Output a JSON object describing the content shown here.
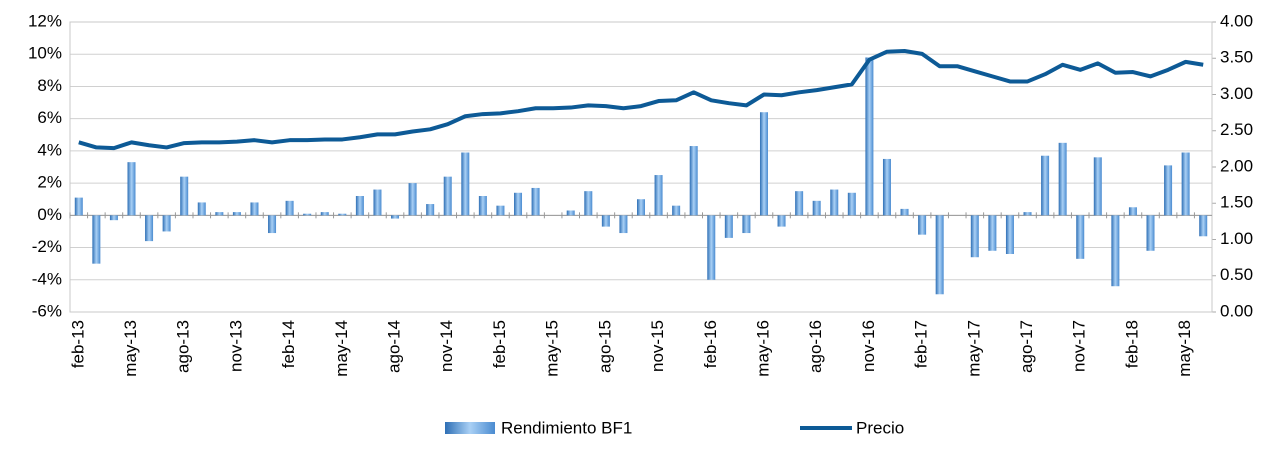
{
  "chart_data": {
    "type": "bar",
    "categories": [
      "feb-13",
      null,
      null,
      "may-13",
      null,
      null,
      "ago-13",
      null,
      null,
      "nov-13",
      null,
      null,
      "feb-14",
      null,
      null,
      "may-14",
      null,
      null,
      "ago-14",
      null,
      null,
      "nov-14",
      null,
      null,
      "feb-15",
      null,
      null,
      "may-15",
      null,
      null,
      "ago-15",
      null,
      null,
      "nov-15",
      null,
      null,
      "feb-16",
      null,
      null,
      "may-16",
      null,
      null,
      "ago-16",
      null,
      null,
      "nov-16",
      null,
      null,
      "feb-17",
      null,
      null,
      "may-17",
      null,
      null,
      "ago-17",
      null,
      null,
      "nov-17",
      null,
      null,
      "feb-18",
      null,
      null,
      "may-18",
      null
    ],
    "series": [
      {
        "name": "Rendimiento BF1",
        "type": "bar",
        "color": "#5b9bd5",
        "values": [
          1.1,
          -3.0,
          -0.3,
          3.3,
          -1.6,
          -1.0,
          2.4,
          0.8,
          0.2,
          0.2,
          0.8,
          -1.1,
          0.9,
          0.1,
          0.2,
          0.1,
          1.2,
          1.6,
          -0.2,
          2.0,
          0.7,
          2.4,
          3.9,
          1.2,
          0.6,
          1.4,
          1.7,
          0.0,
          0.3,
          1.5,
          -0.7,
          -1.1,
          1.0,
          2.5,
          0.6,
          4.3,
          -4.0,
          -1.4,
          -1.1,
          6.4,
          -0.7,
          1.5,
          0.9,
          1.6,
          1.4,
          9.8,
          3.5,
          0.4,
          -1.2,
          -4.9,
          0.0,
          -2.6,
          -2.2,
          -2.4,
          0.2,
          3.7,
          4.5,
          -2.7,
          3.6,
          -4.4,
          0.5,
          -2.2,
          3.1,
          3.9,
          -1.3
        ]
      },
      {
        "name": "Precio",
        "type": "line",
        "axis": "y2",
        "color": "#0d5a96",
        "values": [
          2.34,
          2.27,
          2.26,
          2.34,
          2.3,
          2.27,
          2.33,
          2.34,
          2.34,
          2.35,
          2.37,
          2.34,
          2.37,
          2.37,
          2.38,
          2.38,
          2.41,
          2.45,
          2.45,
          2.49,
          2.52,
          2.59,
          2.7,
          2.73,
          2.74,
          2.77,
          2.81,
          2.81,
          2.82,
          2.85,
          2.84,
          2.81,
          2.84,
          2.91,
          2.92,
          3.03,
          2.92,
          2.88,
          2.85,
          3.0,
          2.99,
          3.03,
          3.06,
          3.1,
          3.14,
          3.48,
          3.59,
          3.6,
          3.56,
          3.39,
          3.39,
          3.32,
          3.25,
          3.18,
          3.18,
          3.28,
          3.41,
          3.34,
          3.43,
          3.3,
          3.31,
          3.25,
          3.34,
          3.45,
          3.41
        ]
      }
    ],
    "ylim": [
      -6,
      12
    ],
    "yticks": [
      {
        "value": -6,
        "label": "-6%"
      },
      {
        "value": -4,
        "label": "-4%"
      },
      {
        "value": -2,
        "label": "-2%"
      },
      {
        "value": 0,
        "label": "0%"
      },
      {
        "value": 2,
        "label": "2%"
      },
      {
        "value": 4,
        "label": "4%"
      },
      {
        "value": 6,
        "label": "6%"
      },
      {
        "value": 8,
        "label": "8%"
      },
      {
        "value": 10,
        "label": "10%"
      },
      {
        "value": 12,
        "label": "12%"
      }
    ],
    "y2lim": [
      0,
      4
    ],
    "y2ticks": [
      {
        "value": 0,
        "label": "0.00"
      },
      {
        "value": 0.5,
        "label": "0.50"
      },
      {
        "value": 1,
        "label": "1.00"
      },
      {
        "value": 1.5,
        "label": "1.50"
      },
      {
        "value": 2,
        "label": "2.00"
      },
      {
        "value": 2.5,
        "label": "2.50"
      },
      {
        "value": 3,
        "label": "3.00"
      },
      {
        "value": 3.5,
        "label": "3.50"
      },
      {
        "value": 4,
        "label": "4.00"
      }
    ],
    "grid": true,
    "legend": "bottom"
  }
}
